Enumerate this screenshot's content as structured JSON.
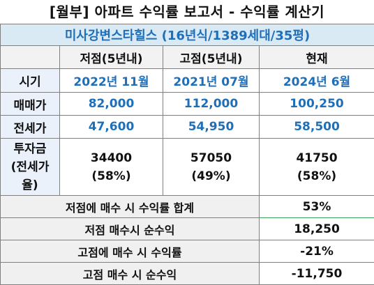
{
  "title": "[월부] 아파트 수익률 보고서 - 수익률 계산기",
  "apartment": "미사강변스타힐스 (16년식/1389세대/35평)",
  "columns": {
    "label": "",
    "c1": "저점(5년내)",
    "c2": "고점(5년내)",
    "c3": "현재"
  },
  "rows": {
    "period": {
      "label": "시기",
      "v1": "2022년 11월",
      "v2": "2021년 07월",
      "v3": "2024년 6월"
    },
    "sale": {
      "label": "매매가",
      "v1": "82,000",
      "v2": "112,000",
      "v3": "100,250"
    },
    "jeonse": {
      "label": "전세가",
      "v1": "47,600",
      "v2": "54,950",
      "v3": "58,500"
    },
    "investment": {
      "label_lines": [
        "투자금",
        "(전세가",
        "율)"
      ],
      "v1": "34400",
      "v1_pct": "(58%)",
      "v2": "57050",
      "v2_pct": "(49%)",
      "v3": "41750",
      "v3_pct": "(58%)"
    }
  },
  "summary": [
    {
      "label": "저점에 매수 시 수익률 합계",
      "value": "53%"
    },
    {
      "label": "저점 매수시 순수익",
      "value": "18,250"
    },
    {
      "label": "고점에 매수 시 수익률",
      "value": "-21%"
    },
    {
      "label": "고점 매수 시 순수익",
      "value": "-11,750"
    }
  ],
  "colors": {
    "value_blue": "#1f6fb8",
    "apt_bg": "#d9eaf4",
    "selected_border": "#3aa45b"
  }
}
